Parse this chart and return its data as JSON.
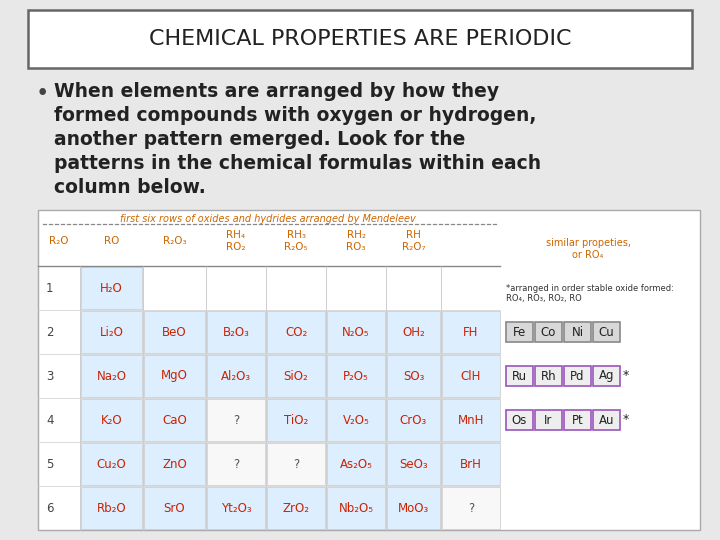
{
  "title": "CHEMICAL PROPERTIES ARE PERIODIC",
  "bullet_lines": [
    "When elements are arranged by how they",
    "formed compounds with oxygen or hydrogen,",
    "another pattern emerged. Look for the",
    "patterns in the chemical formulas within each",
    "column below."
  ],
  "bg_color": "#e8e8e8",
  "title_box_color": "#ffffff",
  "title_border_color": "#666666",
  "title_font_size": 16,
  "bullet_font_size": 13.5,
  "table_title": "first six rows of oxides and hydrides arranged by Mendeleev",
  "col_headers_top": [
    "",
    "",
    "",
    "RH₄",
    "RH₃",
    "RH₂",
    "RH",
    ""
  ],
  "col_headers_bot": [
    "R₂O",
    "RO",
    "R₂O₃",
    "RO₂",
    "R₂O₅",
    "RO₃",
    "R₂O₇",
    "similar propeties,\nor RO₄"
  ],
  "row_nums": [
    "1",
    "2",
    "3",
    "4",
    "5",
    "6"
  ],
  "table_data": [
    [
      "H₂O",
      "",
      "",
      "",
      "",
      "",
      ""
    ],
    [
      "Li₂O",
      "BeO",
      "B₂O₃",
      "CO₂",
      "N₂O₅",
      "OH₂",
      "FH"
    ],
    [
      "Na₂O",
      "MgO",
      "Al₂O₃",
      "SiO₂",
      "P₂O₅",
      "SO₃",
      "ClH"
    ],
    [
      "K₂O",
      "CaO",
      "?",
      "TiO₂",
      "V₂O₅",
      "CrO₃",
      "MnH"
    ],
    [
      "Cu₂O",
      "ZnO",
      "?",
      "?",
      "As₂O₅",
      "SeO₃",
      "BrH"
    ],
    [
      "Rb₂O",
      "SrO",
      "Yt₂O₃",
      "ZrO₂",
      "Nb₂O₅",
      "MoO₃",
      "?"
    ]
  ],
  "note_text": "*arranged in order stable oxide formed:\nRO₄, RO₃, RO₂, RO",
  "side_groups": [
    {
      "cells": [
        "Fe",
        "Co",
        "Ni",
        "Cu"
      ],
      "border": "#888888",
      "bg": "#d8d8d8",
      "star": false
    },
    {
      "cells": [
        "Ru",
        "Rh",
        "Pd",
        "Ag"
      ],
      "border": "#9955bb",
      "bg": "#eeeeee",
      "star": true
    },
    {
      "cells": [
        "Os",
        "Ir",
        "Pt",
        "Au"
      ],
      "border": "#9955bb",
      "bg": "#eeeeee",
      "star": true
    }
  ],
  "orange_color": "#cc6600",
  "purple_color": "#9955bb",
  "red_color": "#cc2200",
  "table_bg": "#ffffff",
  "cell_bg": "#ddeeff"
}
